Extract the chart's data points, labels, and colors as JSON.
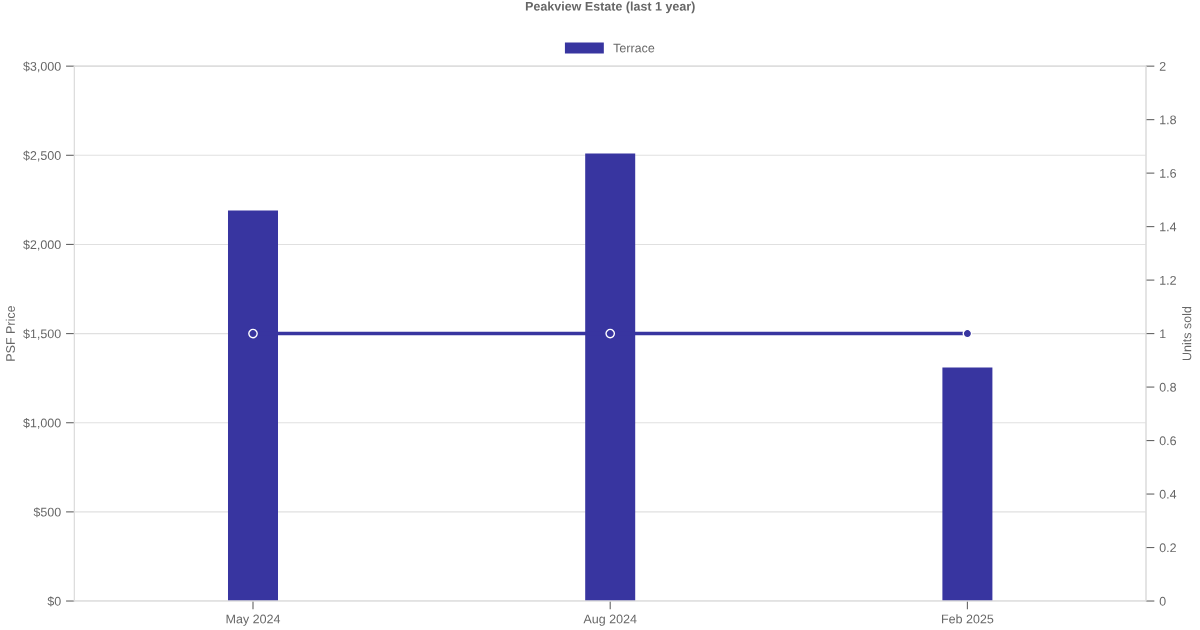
{
  "chart_data": {
    "type": "bar",
    "title": "Peakview Estate (last 1 year)",
    "categories": [
      "May 2024",
      "Aug 2024",
      "Feb 2025"
    ],
    "series": [
      {
        "name": "Terrace",
        "color": "#3835a0",
        "values": [
          2190,
          2510,
          1310
        ]
      },
      {
        "type": "line",
        "axis": "y2",
        "color": "#3835a0",
        "values": [
          1,
          1,
          1
        ],
        "marker": "circle"
      }
    ],
    "ylabel": "PSF Price",
    "y2label": "Units sold",
    "ylim": [
      0,
      3000
    ],
    "yticks": [
      {
        "value": 0,
        "label": "$0"
      },
      {
        "value": 500,
        "label": "$500"
      },
      {
        "value": 1000,
        "label": "$1,000"
      },
      {
        "value": 1500,
        "label": "$1,500"
      },
      {
        "value": 2000,
        "label": "$2,000"
      },
      {
        "value": 2500,
        "label": "$2,500"
      },
      {
        "value": 3000,
        "label": "$3,000"
      }
    ],
    "y2lim": [
      0,
      2
    ],
    "y2ticks": [
      0,
      0.2,
      0.4,
      0.6,
      0.8,
      1,
      1.2,
      1.4,
      1.6,
      1.8,
      2
    ],
    "grid": "y",
    "legend": "top"
  }
}
